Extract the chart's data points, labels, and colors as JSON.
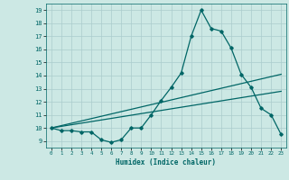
{
  "xlabel": "Humidex (Indice chaleur)",
  "bg_color": "#cce8e4",
  "grid_color": "#aacccc",
  "line_color": "#006666",
  "xlim": [
    -0.5,
    23.5
  ],
  "ylim": [
    8.5,
    19.5
  ],
  "xticks": [
    0,
    1,
    2,
    3,
    4,
    5,
    6,
    7,
    8,
    9,
    10,
    11,
    12,
    13,
    14,
    15,
    16,
    17,
    18,
    19,
    20,
    21,
    22,
    23
  ],
  "yticks": [
    9,
    10,
    11,
    12,
    13,
    14,
    15,
    16,
    17,
    18,
    19
  ],
  "line1_x": [
    0,
    1,
    2,
    3,
    4,
    5,
    6,
    7,
    8,
    9,
    10,
    11,
    12,
    13,
    14,
    15,
    16,
    17,
    18,
    19,
    20,
    21,
    22,
    23
  ],
  "line1_y": [
    10.0,
    9.8,
    9.8,
    9.7,
    9.7,
    9.1,
    8.9,
    9.1,
    10.0,
    10.0,
    11.0,
    12.1,
    13.1,
    14.2,
    17.0,
    19.0,
    17.6,
    17.4,
    16.1,
    14.1,
    13.1,
    11.5,
    11.0,
    9.5
  ],
  "line2_x": [
    0,
    23
  ],
  "line2_y": [
    10.0,
    14.1
  ],
  "line3_x": [
    0,
    23
  ],
  "line3_y": [
    10.0,
    12.8
  ]
}
